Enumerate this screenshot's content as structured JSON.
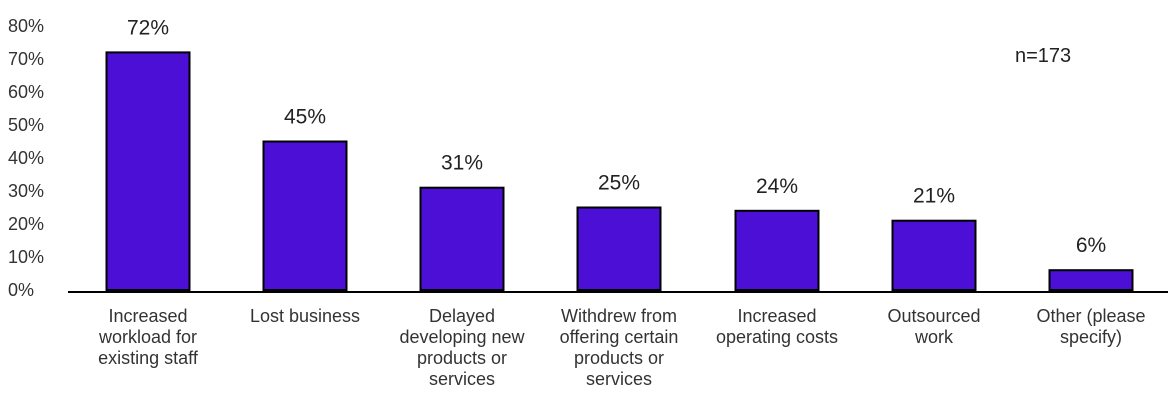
{
  "chart_data": {
    "type": "bar",
    "categories": [
      [
        "Increased",
        "workload for",
        "existing staff"
      ],
      [
        "Lost business"
      ],
      [
        "Delayed",
        "developing new",
        "products or",
        "services"
      ],
      [
        "Withdrew from",
        "offering certain",
        "products or",
        "services"
      ],
      [
        "Increased",
        "operating costs"
      ],
      [
        "Outsourced",
        "work"
      ],
      [
        "Other (please",
        "specify)"
      ]
    ],
    "values": [
      72,
      45,
      31,
      25,
      24,
      21,
      6
    ],
    "data_labels": [
      "72%",
      "45%",
      "31%",
      "25%",
      "24%",
      "21%",
      "6%"
    ],
    "y_ticks": [
      "0%",
      "10%",
      "20%",
      "30%",
      "40%",
      "50%",
      "60%",
      "70%",
      "80%"
    ],
    "ylim": [
      0,
      80
    ],
    "grid": false,
    "bar_color": "#4b0fd6",
    "annotation": "n=173"
  }
}
